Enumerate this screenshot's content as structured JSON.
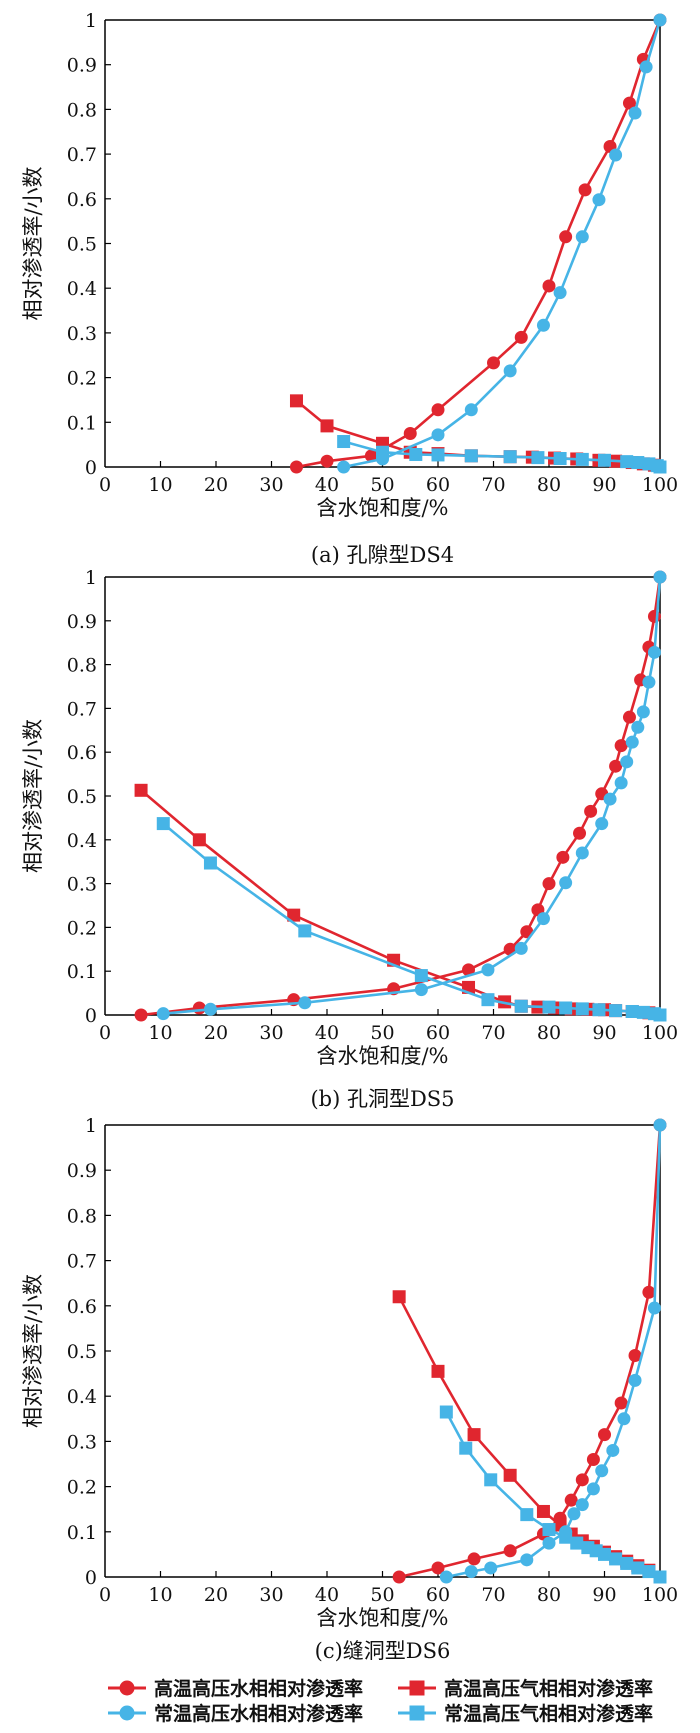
{
  "chart_data": [
    {
      "type": "line",
      "caption": "(a) 孔隙型DS4",
      "xlabel": "含水饱和度/%",
      "ylabel": "相对渗透率/小数",
      "xlim": [
        0,
        100
      ],
      "ylim": [
        0,
        1
      ],
      "xticks": [
        "0",
        "10",
        "20",
        "30",
        "40",
        "50",
        "60",
        "70",
        "80",
        "90",
        "100"
      ],
      "yticks": [
        "0",
        "0.1",
        "0.2",
        "0.3",
        "0.4",
        "0.5",
        "0.6",
        "0.7",
        "0.8",
        "0.9",
        "1"
      ],
      "series": [
        {
          "key": "hw",
          "points": [
            [
              34.5,
              0
            ],
            [
              40,
              0.013
            ],
            [
              48,
              0.025
            ],
            [
              55,
              0.075
            ],
            [
              60,
              0.128
            ],
            [
              70,
              0.233
            ],
            [
              75,
              0.29
            ],
            [
              80,
              0.405
            ],
            [
              83,
              0.515
            ],
            [
              86.5,
              0.62
            ],
            [
              91,
              0.717
            ],
            [
              94.5,
              0.814
            ],
            [
              97,
              0.912
            ],
            [
              100,
              1
            ]
          ]
        },
        {
          "key": "hg",
          "points": [
            [
              34.5,
              0.148
            ],
            [
              40,
              0.092
            ],
            [
              50,
              0.053
            ],
            [
              55,
              0.033
            ],
            [
              60,
              0.03
            ],
            [
              66,
              0.025
            ],
            [
              73,
              0.023
            ],
            [
              77,
              0.022
            ],
            [
              81,
              0.02
            ],
            [
              85,
              0.018
            ],
            [
              89,
              0.015
            ],
            [
              92,
              0.013
            ],
            [
              95,
              0.01
            ],
            [
              97,
              0.007
            ],
            [
              99,
              0.004
            ],
            [
              100,
              0
            ]
          ]
        },
        {
          "key": "nw",
          "points": [
            [
              43,
              0
            ],
            [
              50,
              0.018
            ],
            [
              60,
              0.072
            ],
            [
              66,
              0.128
            ],
            [
              73,
              0.215
            ],
            [
              79,
              0.317
            ],
            [
              82,
              0.39
            ],
            [
              86,
              0.515
            ],
            [
              89,
              0.598
            ],
            [
              92,
              0.698
            ],
            [
              95.5,
              0.792
            ],
            [
              97.5,
              0.895
            ],
            [
              100,
              1
            ]
          ]
        },
        {
          "key": "ng",
          "points": [
            [
              43,
              0.057
            ],
            [
              50,
              0.033
            ],
            [
              56,
              0.028
            ],
            [
              60,
              0.027
            ],
            [
              66,
              0.025
            ],
            [
              73,
              0.023
            ],
            [
              78,
              0.021
            ],
            [
              82,
              0.019
            ],
            [
              86,
              0.017
            ],
            [
              90,
              0.015
            ],
            [
              94,
              0.012
            ],
            [
              96,
              0.01
            ],
            [
              98,
              0.007
            ],
            [
              99.5,
              0.003
            ],
            [
              100,
              0
            ]
          ]
        }
      ]
    },
    {
      "type": "line",
      "caption": "(b) 孔洞型DS5",
      "xlabel": "含水饱和度/%",
      "ylabel": "相对渗透率/小数",
      "xlim": [
        0,
        100
      ],
      "ylim": [
        0,
        1
      ],
      "xticks": [
        "0",
        "10",
        "20",
        "30",
        "40",
        "50",
        "60",
        "70",
        "80",
        "90",
        "100"
      ],
      "yticks": [
        "0",
        "0.1",
        "0.2",
        "0.3",
        "0.4",
        "0.5",
        "0.6",
        "0.7",
        "0.8",
        "0.9",
        "1"
      ],
      "series": [
        {
          "key": "hw",
          "points": [
            [
              6.5,
              0
            ],
            [
              17,
              0.016
            ],
            [
              34,
              0.035
            ],
            [
              52,
              0.06
            ],
            [
              65.5,
              0.103
            ],
            [
              73,
              0.15
            ],
            [
              76,
              0.19
            ],
            [
              78,
              0.24
            ],
            [
              80,
              0.3
            ],
            [
              82.5,
              0.36
            ],
            [
              85.5,
              0.415
            ],
            [
              87.5,
              0.465
            ],
            [
              89.5,
              0.505
            ],
            [
              92,
              0.568
            ],
            [
              93,
              0.615
            ],
            [
              94.5,
              0.68
            ],
            [
              96.5,
              0.765
            ],
            [
              98,
              0.84
            ],
            [
              99,
              0.91
            ],
            [
              100,
              1
            ]
          ]
        },
        {
          "key": "hg",
          "points": [
            [
              6.5,
              0.513
            ],
            [
              17,
              0.4
            ],
            [
              34,
              0.228
            ],
            [
              52,
              0.125
            ],
            [
              65.5,
              0.063
            ],
            [
              72,
              0.03
            ],
            [
              75,
              0.02
            ],
            [
              78,
              0.018
            ],
            [
              81,
              0.016
            ],
            [
              84,
              0.014
            ],
            [
              87,
              0.013
            ],
            [
              90,
              0.012
            ],
            [
              92,
              0.01
            ],
            [
              95,
              0.008
            ],
            [
              98,
              0.005
            ],
            [
              100,
              0
            ]
          ]
        },
        {
          "key": "nw",
          "points": [
            [
              10.5,
              0.003
            ],
            [
              19,
              0.013
            ],
            [
              36,
              0.028
            ],
            [
              57,
              0.058
            ],
            [
              69,
              0.103
            ],
            [
              75,
              0.152
            ],
            [
              79,
              0.22
            ],
            [
              83,
              0.302
            ],
            [
              86,
              0.37
            ],
            [
              89.5,
              0.437
            ],
            [
              91,
              0.493
            ],
            [
              93,
              0.53
            ],
            [
              94,
              0.578
            ],
            [
              95,
              0.623
            ],
            [
              96,
              0.657
            ],
            [
              97,
              0.692
            ],
            [
              98,
              0.76
            ],
            [
              99,
              0.828
            ],
            [
              100,
              1
            ]
          ]
        },
        {
          "key": "ng",
          "points": [
            [
              10.5,
              0.437
            ],
            [
              19,
              0.347
            ],
            [
              36,
              0.192
            ],
            [
              57,
              0.09
            ],
            [
              69,
              0.035
            ],
            [
              75,
              0.02
            ],
            [
              80,
              0.018
            ],
            [
              83,
              0.016
            ],
            [
              86,
              0.014
            ],
            [
              89,
              0.012
            ],
            [
              92,
              0.01
            ],
            [
              95,
              0.008
            ],
            [
              97,
              0.006
            ],
            [
              99,
              0.003
            ],
            [
              100,
              0
            ]
          ]
        }
      ]
    },
    {
      "type": "line",
      "caption": "(c)缝洞型DS6",
      "xlabel": "含水饱和度/%",
      "ylabel": "相对渗透率/小数",
      "xlim": [
        0,
        100
      ],
      "ylim": [
        0,
        1
      ],
      "xticks": [
        "0",
        "10",
        "20",
        "30",
        "40",
        "50",
        "60",
        "70",
        "80",
        "90",
        "100"
      ],
      "yticks": [
        "0",
        "0.1",
        "0.2",
        "0.3",
        "0.4",
        "0.5",
        "0.6",
        "0.7",
        "0.8",
        "0.9",
        "1"
      ],
      "series": [
        {
          "key": "hw",
          "points": [
            [
              53,
              0
            ],
            [
              60,
              0.02
            ],
            [
              66.5,
              0.04
            ],
            [
              73,
              0.058
            ],
            [
              79,
              0.095
            ],
            [
              82,
              0.13
            ],
            [
              84,
              0.17
            ],
            [
              86,
              0.215
            ],
            [
              88,
              0.26
            ],
            [
              90,
              0.315
            ],
            [
              93,
              0.385
            ],
            [
              95.5,
              0.49
            ],
            [
              98,
              0.63
            ],
            [
              100,
              1
            ]
          ]
        },
        {
          "key": "hg",
          "points": [
            [
              53,
              0.62
            ],
            [
              60,
              0.455
            ],
            [
              66.5,
              0.315
            ],
            [
              73,
              0.225
            ],
            [
              79,
              0.145
            ],
            [
              82,
              0.115
            ],
            [
              84,
              0.095
            ],
            [
              86,
              0.08
            ],
            [
              88,
              0.068
            ],
            [
              90,
              0.055
            ],
            [
              92,
              0.045
            ],
            [
              94,
              0.035
            ],
            [
              96,
              0.025
            ],
            [
              98,
              0.015
            ],
            [
              100,
              0
            ]
          ]
        },
        {
          "key": "nw",
          "points": [
            [
              61.5,
              0
            ],
            [
              66,
              0.012
            ],
            [
              69.5,
              0.02
            ],
            [
              76,
              0.038
            ],
            [
              80,
              0.075
            ],
            [
              83,
              0.1
            ],
            [
              84.5,
              0.14
            ],
            [
              86,
              0.16
            ],
            [
              88,
              0.195
            ],
            [
              89.5,
              0.235
            ],
            [
              91.5,
              0.28
            ],
            [
              93.5,
              0.35
            ],
            [
              95.5,
              0.435
            ],
            [
              99,
              0.595
            ],
            [
              100,
              1
            ]
          ]
        },
        {
          "key": "ng",
          "points": [
            [
              61.5,
              0.365
            ],
            [
              65,
              0.285
            ],
            [
              69.5,
              0.215
            ],
            [
              76,
              0.138
            ],
            [
              80,
              0.105
            ],
            [
              83,
              0.088
            ],
            [
              85,
              0.075
            ],
            [
              87,
              0.065
            ],
            [
              88.5,
              0.058
            ],
            [
              90,
              0.05
            ],
            [
              92,
              0.04
            ],
            [
              94,
              0.03
            ],
            [
              96,
              0.02
            ],
            [
              98,
              0.012
            ],
            [
              100,
              0
            ]
          ]
        }
      ]
    }
  ],
  "legend": {
    "items": [
      {
        "key": "hw",
        "label": "高温高压水相相对渗透率",
        "color": "#e0262f",
        "marker": "circle"
      },
      {
        "key": "hg",
        "label": "高温高压气相相对渗透率",
        "color": "#e0262f",
        "marker": "square"
      },
      {
        "key": "nw",
        "label": "常温高压水相相对渗透率",
        "color": "#46b4e6",
        "marker": "circle"
      },
      {
        "key": "ng",
        "label": "常温高压气相相对渗透率",
        "color": "#46b4e6",
        "marker": "square"
      }
    ]
  }
}
